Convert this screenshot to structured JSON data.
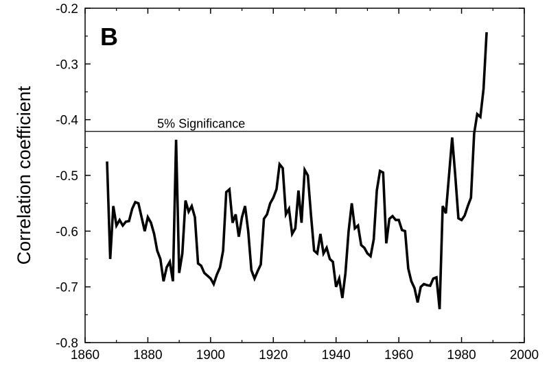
{
  "chart_data": {
    "type": "line",
    "panel_label": "B",
    "xlabel": "",
    "ylabel": "Correlation coefficient",
    "xlim": [
      1860,
      2000
    ],
    "ylim": [
      -0.8,
      -0.2
    ],
    "xticks": [
      1860,
      1880,
      1900,
      1920,
      1940,
      1960,
      1980,
      2000
    ],
    "yticks": [
      -0.8,
      -0.7,
      -0.6,
      -0.5,
      -0.4,
      -0.3,
      -0.2
    ],
    "xtick_labels": [
      "1860",
      "1880",
      "1900",
      "1920",
      "1940",
      "1960",
      "1980",
      "2000"
    ],
    "ytick_labels": [
      "-0.8",
      "-0.7",
      "-0.6",
      "-0.5",
      "-0.4",
      "-0.3",
      "-0.2"
    ],
    "grid": false,
    "reference_line": {
      "y": -0.421,
      "label": "5% Significance"
    },
    "series": [
      {
        "x": [
          1867,
          1868,
          1869,
          1870,
          1871,
          1872,
          1873,
          1874,
          1875,
          1876,
          1877,
          1878,
          1879,
          1880,
          1881,
          1882,
          1883,
          1884,
          1885,
          1886,
          1887,
          1888,
          1889,
          1890,
          1891,
          1892,
          1893,
          1894,
          1895,
          1896,
          1897,
          1898,
          1899,
          1900,
          1901,
          1902,
          1903,
          1904,
          1905,
          1906,
          1907,
          1908,
          1909,
          1910,
          1911,
          1912,
          1913,
          1914,
          1915,
          1916,
          1917,
          1918,
          1919,
          1920,
          1921,
          1922,
          1923,
          1924,
          1925,
          1926,
          1927,
          1928,
          1929,
          1930,
          1931,
          1932,
          1933,
          1934,
          1935,
          1936,
          1937,
          1938,
          1939,
          1940,
          1941,
          1942,
          1943,
          1944,
          1945,
          1946,
          1947,
          1948,
          1949,
          1950,
          1951,
          1952,
          1953,
          1954,
          1955,
          1956,
          1957,
          1958,
          1959,
          1960,
          1961,
          1962,
          1963,
          1964,
          1965,
          1966,
          1967,
          1968,
          1969,
          1970,
          1971,
          1972,
          1973,
          1974,
          1975,
          1976,
          1977,
          1978,
          1979,
          1980,
          1981,
          1982,
          1983,
          1984,
          1985,
          1986,
          1987,
          1988
        ],
        "values": [
          -0.475,
          -0.65,
          -0.555,
          -0.59,
          -0.58,
          -0.59,
          -0.583,
          -0.582,
          -0.56,
          -0.548,
          -0.55,
          -0.575,
          -0.6,
          -0.575,
          -0.585,
          -0.605,
          -0.635,
          -0.65,
          -0.69,
          -0.665,
          -0.655,
          -0.69,
          -0.436,
          -0.675,
          -0.64,
          -0.545,
          -0.565,
          -0.555,
          -0.575,
          -0.658,
          -0.662,
          -0.675,
          -0.68,
          -0.685,
          -0.695,
          -0.678,
          -0.665,
          -0.635,
          -0.53,
          -0.525,
          -0.585,
          -0.57,
          -0.61,
          -0.575,
          -0.555,
          -0.6,
          -0.67,
          -0.685,
          -0.672,
          -0.66,
          -0.578,
          -0.57,
          -0.55,
          -0.54,
          -0.525,
          -0.48,
          -0.487,
          -0.57,
          -0.56,
          -0.605,
          -0.595,
          -0.527,
          -0.585,
          -0.49,
          -0.5,
          -0.57,
          -0.635,
          -0.64,
          -0.605,
          -0.64,
          -0.63,
          -0.65,
          -0.655,
          -0.7,
          -0.685,
          -0.72,
          -0.675,
          -0.6,
          -0.55,
          -0.595,
          -0.59,
          -0.625,
          -0.63,
          -0.64,
          -0.645,
          -0.615,
          -0.527,
          -0.492,
          -0.495,
          -0.622,
          -0.578,
          -0.573,
          -0.58,
          -0.58,
          -0.598,
          -0.6,
          -0.667,
          -0.69,
          -0.702,
          -0.728,
          -0.7,
          -0.695,
          -0.697,
          -0.698,
          -0.685,
          -0.683,
          -0.74,
          -0.555,
          -0.568,
          -0.5,
          -0.432,
          -0.5,
          -0.577,
          -0.58,
          -0.572,
          -0.555,
          -0.54,
          -0.425,
          -0.39,
          -0.395,
          -0.345,
          -0.243
        ]
      }
    ]
  }
}
